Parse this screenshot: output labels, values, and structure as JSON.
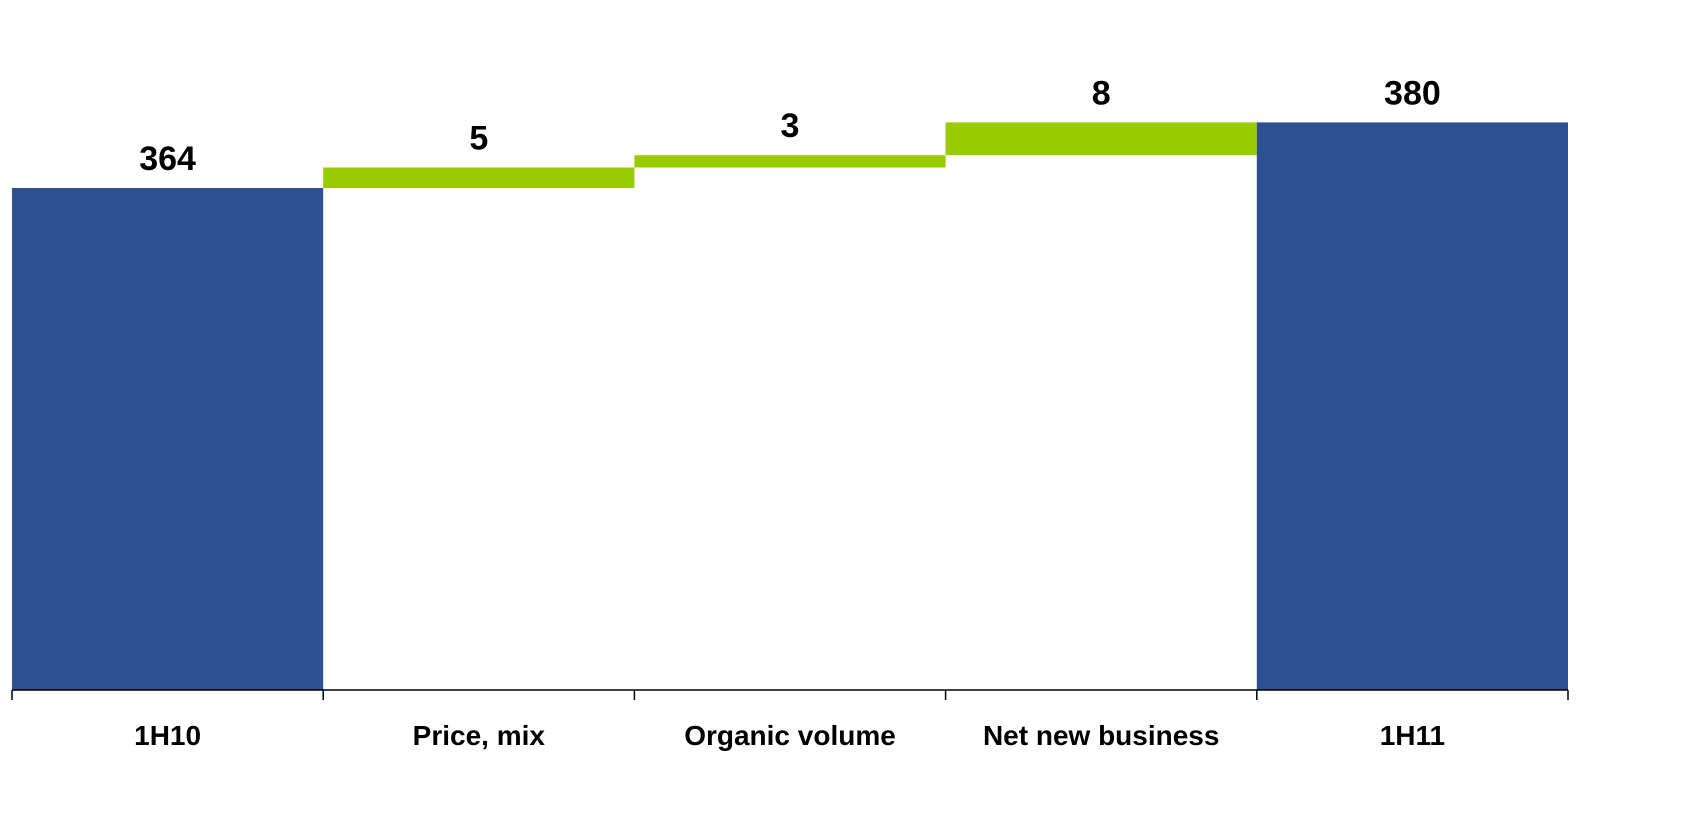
{
  "chart_data": {
    "type": "bar",
    "subtype": "waterfall",
    "categories": [
      "1H10",
      "Price, mix",
      "Organic volume",
      "Net new business",
      "1H11"
    ],
    "values": [
      364,
      5,
      3,
      8,
      380
    ],
    "bar_kinds": [
      "total",
      "increase",
      "increase",
      "increase",
      "total"
    ],
    "data_labels": [
      "364",
      "5",
      "3",
      "8",
      "380"
    ],
    "title": "",
    "xlabel": "",
    "ylabel": "",
    "grid": false,
    "legend": "none",
    "colors": {
      "total": "#2E5090",
      "increase": "#99CC00",
      "axis": "#000000",
      "text": "#000000"
    }
  }
}
